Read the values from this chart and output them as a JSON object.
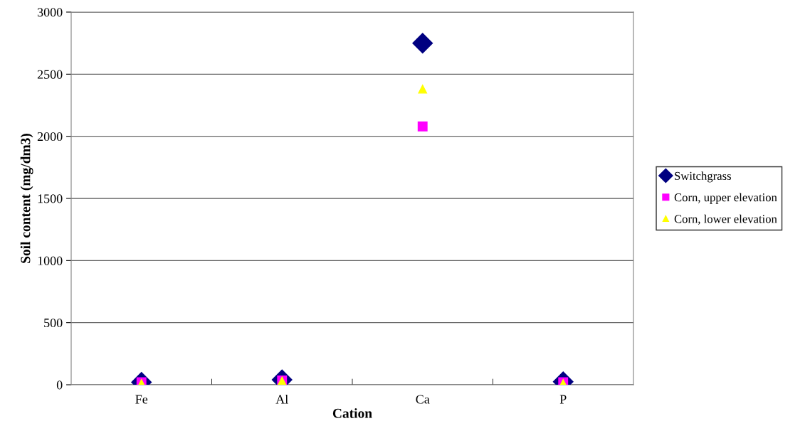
{
  "chart_data": {
    "type": "scatter",
    "xlabel": "Cation",
    "ylabel": "Soil content (mg/dm3)",
    "categories": [
      "Fe",
      "Al",
      "Ca",
      "P"
    ],
    "series": [
      {
        "name": "Switchgrass",
        "color": "#000080",
        "marker": "diamond",
        "values": [
          20,
          40,
          2750,
          25
        ]
      },
      {
        "name": "Corn, upper elevation",
        "color": "#ff00ff",
        "marker": "square",
        "values": [
          20,
          35,
          2080,
          20
        ]
      },
      {
        "name": "Corn, lower elevation",
        "color": "#ffff00",
        "marker": "triangle",
        "values": [
          10,
          30,
          2380,
          10
        ]
      }
    ],
    "ylim": [
      0,
      3000
    ],
    "yticks": [
      0,
      500,
      1000,
      1500,
      2000,
      2500,
      3000
    ],
    "grid": "y",
    "legend": "right"
  }
}
